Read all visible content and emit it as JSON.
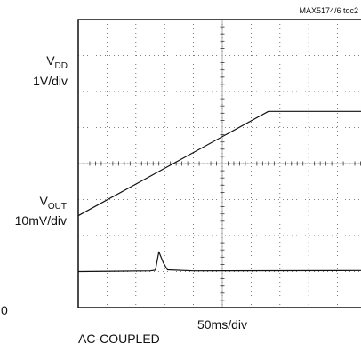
{
  "figure_code": "MAX5174/6 toc2",
  "chart_data": {
    "type": "line",
    "title": "",
    "xlabel": "50ms/div",
    "ylabel": "",
    "grid": true,
    "x_divisions": 10,
    "y_divisions": 8,
    "channels": [
      {
        "name": "VDD",
        "label_main": "V",
        "label_sub": "DD",
        "scale": "1V/div",
        "unit": "div",
        "points": [
          {
            "x": 0,
            "y": 2.55
          },
          {
            "x": 6.6,
            "y": 5.45
          },
          {
            "x": 10,
            "y": 5.45
          }
        ]
      },
      {
        "name": "VOUT",
        "label_main": "V",
        "label_sub": "OUT",
        "scale": "10mV/div",
        "unit": "div",
        "points": [
          {
            "x": 0,
            "y": 1.0
          },
          {
            "x": 2.5,
            "y": 1.02
          },
          {
            "x": 2.68,
            "y": 1.04
          },
          {
            "x": 2.8,
            "y": 1.55
          },
          {
            "x": 2.95,
            "y": 1.25
          },
          {
            "x": 3.1,
            "y": 1.05
          },
          {
            "x": 4.0,
            "y": 1.02
          },
          {
            "x": 10,
            "y": 1.03
          }
        ]
      }
    ],
    "annotations": [
      "AC-COUPLED"
    ],
    "corner_label": "0"
  }
}
